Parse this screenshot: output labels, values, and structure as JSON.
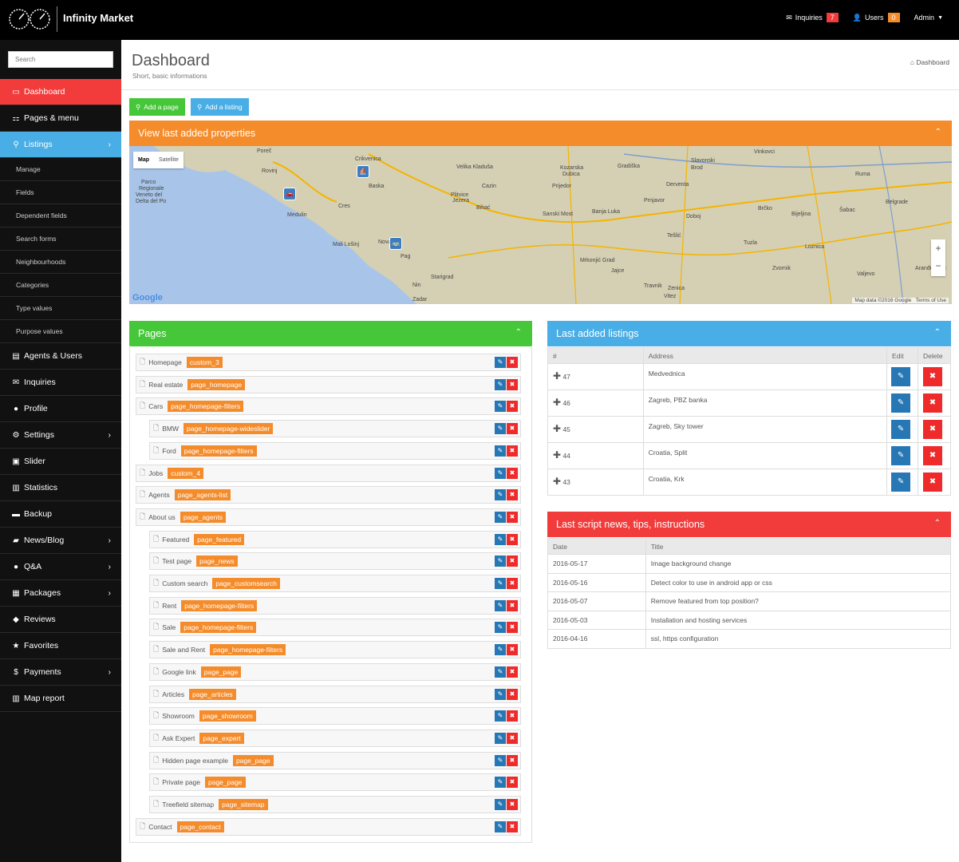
{
  "header": {
    "brand": "Infinity Market",
    "inquiries_label": "Inquiries",
    "inquiries_count": "7",
    "users_label": "Users",
    "users_count": "0",
    "admin_label": "Admin",
    "inquiries_color": "#f23c3c",
    "users_color": "#f58c2b"
  },
  "sidebar": {
    "search_placeholder": "Search",
    "items": [
      {
        "label": "Dashboard",
        "icon": "monitor-icon"
      },
      {
        "label": "Pages & menu",
        "icon": "sitemap-icon"
      },
      {
        "label": "Listings",
        "icon": "map-marker-icon"
      },
      {
        "label": "Agents & Users",
        "icon": "id-card-icon"
      },
      {
        "label": "Inquiries",
        "icon": "envelope-icon"
      },
      {
        "label": "Profile",
        "icon": "user-icon"
      },
      {
        "label": "Settings",
        "icon": "gears-icon"
      },
      {
        "label": "Slider",
        "icon": "picture-icon"
      },
      {
        "label": "Statistics",
        "icon": "bar-chart-icon"
      },
      {
        "label": "Backup",
        "icon": "hdd-icon"
      },
      {
        "label": "News/Blog",
        "icon": "book-icon"
      },
      {
        "label": "Q&A",
        "icon": "comment-icon"
      },
      {
        "label": "Packages",
        "icon": "gift-icon"
      },
      {
        "label": "Reviews",
        "icon": "tags-icon"
      },
      {
        "label": "Favorites",
        "icon": "star-icon"
      },
      {
        "label": "Payments",
        "icon": "dollar-icon"
      },
      {
        "label": "Map report",
        "icon": "chart-icon"
      }
    ],
    "listing_subitems": [
      "Manage",
      "Fields",
      "Dependent fields",
      "Search forms",
      "Neighbourhoods",
      "Categories",
      "Type values",
      "Purpose values"
    ]
  },
  "page": {
    "title": "Dashboard",
    "subtitle": "Short, basic informations",
    "breadcrumb": "Dashboard",
    "add_page_label": "Add a page",
    "add_listing_label": "Add a listing"
  },
  "map_panel": {
    "title": "View last added properties",
    "map_label": "Map",
    "satellite_label": "Satellite",
    "places": [
      "Poreč",
      "Rovinj",
      "Crikvenica",
      "Baska",
      "Medulin",
      "Cres",
      "Mali Lošinj",
      "Novalja",
      "Pag",
      "Nin",
      "Zadar",
      "Starigrad",
      "Velika Kladuša",
      "Kozarska Dubica",
      "Gradiška",
      "Slavonski Brod",
      "Prijedor",
      "Cazin",
      "Bihać",
      "Plitvice Jezera",
      "Sanski Most",
      "Banja Luka",
      "Derventa",
      "Prnjavor",
      "Doboj",
      "Brčko",
      "Bijeljina",
      "Šabac",
      "Belgrade",
      "Tešlić",
      "Tuzla",
      "Mrkonjić Grad",
      "Jajce",
      "Travnik",
      "Zenica",
      "Vitez",
      "Zvornik",
      "Loznica",
      "Valjevo",
      "Vinkovci",
      "Ruma",
      "Aranđelovac",
      "Parco Regionale Veneto del Delta del Po"
    ],
    "attribution": "Map data ©2016 Google",
    "terms": "Terms of Use",
    "google_label": "Google"
  },
  "pages_panel": {
    "title": "Pages",
    "rows": [
      {
        "name": "Homepage",
        "tag": "custom_3",
        "level": 0
      },
      {
        "name": "Real estate",
        "tag": "page_homepage",
        "level": 0
      },
      {
        "name": "Cars",
        "tag": "page_homepage-filters",
        "level": 0
      },
      {
        "name": "BMW",
        "tag": "page_homepage-wideslider",
        "level": 1
      },
      {
        "name": "Ford",
        "tag": "page_homepage-filters",
        "level": 1
      },
      {
        "name": "Jobs",
        "tag": "custom_4",
        "level": 0
      },
      {
        "name": "Agents",
        "tag": "page_agents-list",
        "level": 0
      },
      {
        "name": "About us",
        "tag": "page_agents",
        "level": 0
      },
      {
        "name": "Featured",
        "tag": "page_featured",
        "level": 1
      },
      {
        "name": "Test page",
        "tag": "page_news",
        "level": 1
      },
      {
        "name": "Custom search",
        "tag": "page_customsearch",
        "level": 1
      },
      {
        "name": "Rent",
        "tag": "page_homepage-filters",
        "level": 1
      },
      {
        "name": "Sale",
        "tag": "page_homepage-filters",
        "level": 1
      },
      {
        "name": "Sale and Rent",
        "tag": "page_homepage-filters",
        "level": 1
      },
      {
        "name": "Google link",
        "tag": "page_page",
        "level": 1
      },
      {
        "name": "Articles",
        "tag": "page_articles",
        "level": 1
      },
      {
        "name": "Showroom",
        "tag": "page_showroom",
        "level": 1
      },
      {
        "name": "Ask Expert",
        "tag": "page_expert",
        "level": 1
      },
      {
        "name": "Hidden page example",
        "tag": "page_page",
        "level": 1
      },
      {
        "name": "Private page",
        "tag": "page_page",
        "level": 1
      },
      {
        "name": "Treefield sitemap",
        "tag": "page_sitemap",
        "level": 1
      },
      {
        "name": "Contact",
        "tag": "page_contact",
        "level": 0
      }
    ]
  },
  "listings_panel": {
    "title": "Last added listings",
    "columns": [
      "#",
      "Address",
      "Edit",
      "Delete"
    ],
    "rows": [
      {
        "id": "47",
        "address": "Medvednica"
      },
      {
        "id": "46",
        "address": "Zagreb, PBZ banka"
      },
      {
        "id": "45",
        "address": "Zagreb, Sky tower"
      },
      {
        "id": "44",
        "address": "Croatia, Split"
      },
      {
        "id": "43",
        "address": "Croatia, Krk"
      }
    ]
  },
  "news_panel": {
    "title": "Last script news, tips, instructions",
    "columns": [
      "Date",
      "Title"
    ],
    "rows": [
      {
        "date": "2016-05-17",
        "title": "Image background change"
      },
      {
        "date": "2016-05-16",
        "title": "Detect color to use in android app or css"
      },
      {
        "date": "2016-05-07",
        "title": "Remove featured from top position?"
      },
      {
        "date": "2016-05-03",
        "title": "Installation and hosting services"
      },
      {
        "date": "2016-04-16",
        "title": "ssl, https configuration"
      }
    ]
  },
  "colors": {
    "green": "#46c73a",
    "orange": "#f58c2b",
    "blue": "#4aaee6",
    "red": "#f23c3c"
  }
}
